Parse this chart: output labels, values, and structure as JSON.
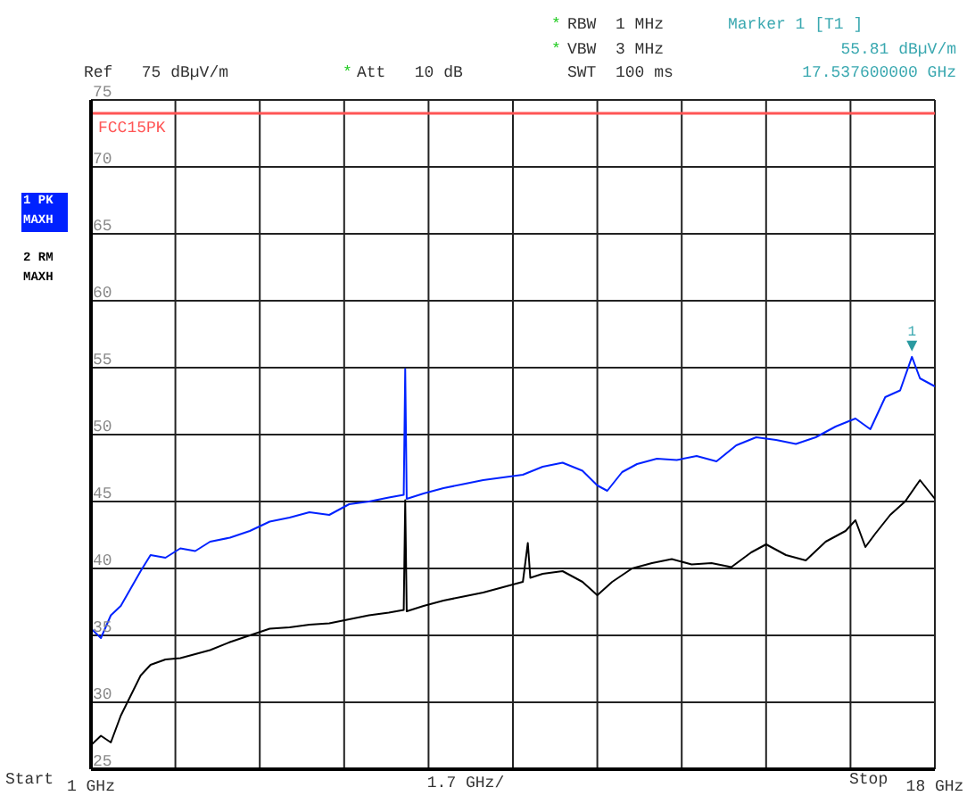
{
  "chart_data": {
    "type": "line",
    "xlabel": "1.7 GHz/",
    "xlim": [
      1,
      18
    ],
    "xticks": [
      {
        "value": 1,
        "label": "1 GHz"
      },
      {
        "value": 2.7,
        "label": null
      },
      {
        "value": 4.4,
        "label": null
      },
      {
        "value": 6.1,
        "label": null
      },
      {
        "value": 7.8,
        "label": null
      },
      {
        "value": 9.5,
        "label": null
      },
      {
        "value": 11.2,
        "label": null
      },
      {
        "value": 12.9,
        "label": null
      },
      {
        "value": 14.6,
        "label": null
      },
      {
        "value": 16.3,
        "label": null
      },
      {
        "value": 18,
        "label": "18 GHz"
      }
    ],
    "ylim": [
      25,
      75
    ],
    "yticks": [
      25,
      30,
      35,
      40,
      45,
      50,
      55,
      60,
      65,
      70,
      75
    ],
    "grid": true,
    "legend": "left",
    "marker": "none",
    "line_style": "solid",
    "ref_lines": [
      {
        "axis": "y",
        "value": 74,
        "label": "FCC15PK",
        "color": "#ff5555"
      }
    ],
    "annotations": [
      "Start",
      "Stop",
      "*",
      "*",
      "*",
      "RBW  1 MHz",
      "VBW  3 MHz",
      "SWT  100 ms",
      "Ref   75 dBµV/m",
      "Att   10 dB",
      "Marker 1 [T1 ]",
      "55.81 dBµV/m",
      "17.537600000 GHz",
      {
        "text": "1",
        "x": 17.5376,
        "y": 55.81
      }
    ],
    "series": [
      {
        "name": "1 PK MAXH",
        "color": "#0022ff",
        "x": [
          1.0,
          1.2,
          1.4,
          1.6,
          1.8,
          2.0,
          2.2,
          2.5,
          2.8,
          3.1,
          3.4,
          3.8,
          4.2,
          4.6,
          5.0,
          5.4,
          5.8,
          6.2,
          6.6,
          7.0,
          7.3,
          7.33,
          7.36,
          7.7,
          8.1,
          8.5,
          8.9,
          9.3,
          9.7,
          10.1,
          10.5,
          10.9,
          11.2,
          11.4,
          11.7,
          12.0,
          12.4,
          12.8,
          13.2,
          13.6,
          14.0,
          14.4,
          14.8,
          15.2,
          15.6,
          16.0,
          16.4,
          16.7,
          17.0,
          17.3,
          17.5376,
          17.7,
          18.0
        ],
        "values": [
          35.5,
          34.8,
          36.5,
          37.2,
          38.5,
          39.8,
          41.0,
          40.8,
          41.5,
          41.3,
          42.0,
          42.3,
          42.8,
          43.5,
          43.8,
          44.2,
          44.0,
          44.8,
          45.0,
          45.3,
          45.5,
          54.9,
          45.2,
          45.6,
          46.0,
          46.3,
          46.6,
          46.8,
          47.0,
          47.6,
          47.9,
          47.3,
          46.2,
          45.8,
          47.2,
          47.8,
          48.2,
          48.1,
          48.4,
          48.0,
          49.2,
          49.8,
          49.6,
          49.3,
          49.8,
          50.6,
          51.2,
          50.4,
          52.8,
          53.3,
          55.81,
          54.2,
          53.6
        ]
      },
      {
        "name": "2 RM MAXH",
        "color": "#000000",
        "x": [
          1.0,
          1.2,
          1.4,
          1.6,
          1.8,
          2.0,
          2.2,
          2.5,
          2.8,
          3.1,
          3.4,
          3.8,
          4.2,
          4.6,
          5.0,
          5.4,
          5.8,
          6.2,
          6.6,
          7.0,
          7.3,
          7.33,
          7.36,
          7.7,
          8.1,
          8.5,
          8.9,
          9.3,
          9.7,
          9.8,
          9.85,
          10.1,
          10.5,
          10.9,
          11.2,
          11.5,
          11.9,
          12.3,
          12.7,
          13.1,
          13.5,
          13.9,
          14.3,
          14.6,
          15.0,
          15.4,
          15.8,
          16.2,
          16.4,
          16.6,
          16.8,
          17.1,
          17.4,
          17.7,
          18.0
        ],
        "values": [
          26.8,
          27.5,
          27.0,
          29.0,
          30.5,
          32.0,
          32.8,
          33.2,
          33.3,
          33.6,
          33.9,
          34.5,
          35.0,
          35.5,
          35.6,
          35.8,
          35.9,
          36.2,
          36.5,
          36.7,
          36.9,
          45.1,
          36.8,
          37.2,
          37.6,
          37.9,
          38.2,
          38.6,
          39.0,
          41.9,
          39.3,
          39.6,
          39.8,
          39.0,
          38.0,
          39.0,
          40.0,
          40.4,
          40.7,
          40.3,
          40.4,
          40.1,
          41.2,
          41.8,
          41.0,
          40.6,
          42.0,
          42.8,
          43.6,
          41.6,
          42.6,
          44.0,
          45.0,
          46.6,
          45.2
        ]
      }
    ]
  }
}
